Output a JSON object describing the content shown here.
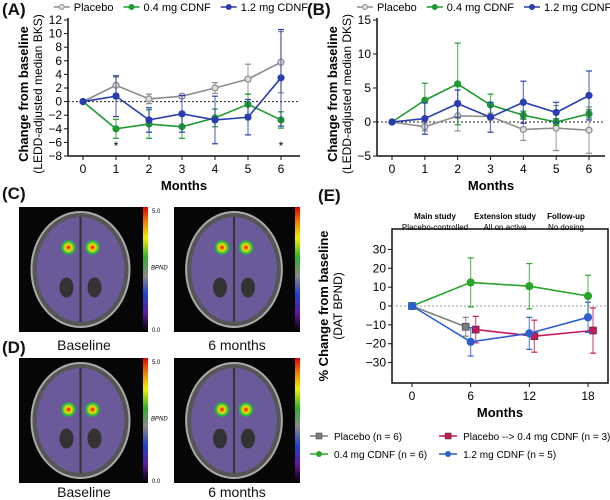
{
  "panels": {
    "a": "(A)",
    "b": "(B)",
    "c": "(C)",
    "d": "(D)",
    "e": "(E)"
  },
  "colors": {
    "placebo": "#8c8c8c",
    "cdnf04": "#1e9a2e",
    "cdnf12": "#2a3db0",
    "e_placebo": "#7f7f7f",
    "e_switch": "#c8175c",
    "e_cdnf04": "#2aa52a",
    "e_cdnf12": "#2b5fd0"
  },
  "images": {
    "baseline_label": "Baseline",
    "six_months_label": "6 months",
    "colorbar_max": "5.0",
    "colorbar_min": "0.0",
    "colorbar_label_c": "BPND",
    "colorbar_label_d": "BPND"
  },
  "chart_data": [
    {
      "type": "line",
      "panel": "A",
      "ylabel": "Change from baseline",
      "ylabel2": "(LEDD-adjusted median BKS)",
      "xlabel": "Months",
      "x": [
        0,
        1,
        2,
        3,
        4,
        5,
        6
      ],
      "ylim": [
        -8,
        12
      ],
      "yticks": [
        -8,
        -6,
        -4,
        -2,
        0,
        2,
        4,
        6,
        8,
        10,
        12
      ],
      "reference_line": 0,
      "legend": "top",
      "annotations": [
        {
          "x": 1,
          "text": "*"
        },
        {
          "x": 6,
          "text": "*"
        }
      ],
      "series": [
        {
          "name": "Placebo",
          "color": "#8c8c8c",
          "values": [
            0,
            2.4,
            0.4,
            0.8,
            2.0,
            3.3,
            5.8
          ],
          "error": [
            0,
            1.2,
            0.7,
            0.3,
            0.8,
            2.2,
            4.5
          ]
        },
        {
          "name": "0.4 mg CDNF",
          "color": "#1e9a2e",
          "values": [
            0,
            -4.0,
            -3.3,
            -3.7,
            -2.4,
            -0.4,
            -2.7
          ],
          "error": [
            0,
            1.4,
            2.1,
            1.7,
            1.3,
            1.5,
            1.2
          ]
        },
        {
          "name": "1.2 mg CDNF",
          "color": "#2a3db0",
          "values": [
            0,
            0.8,
            -2.7,
            -1.8,
            -2.7,
            -2.3,
            3.5
          ],
          "error": [
            0,
            3.0,
            1.8,
            2.7,
            3.5,
            2.6,
            7.1
          ]
        }
      ]
    },
    {
      "type": "line",
      "panel": "B",
      "ylabel": "Change from baseline",
      "ylabel2": "(LEDD-adjusted median DKS)",
      "xlabel": "Months",
      "x": [
        0,
        1,
        2,
        3,
        4,
        5,
        6
      ],
      "ylim": [
        -5,
        15
      ],
      "yticks": [
        -5,
        0,
        5,
        10,
        15
      ],
      "reference_line": 0,
      "legend": "top",
      "series": [
        {
          "name": "Placebo",
          "color": "#8c8c8c",
          "values": [
            0,
            -0.7,
            0.9,
            0.8,
            -1.1,
            -0.9,
            -1.2
          ],
          "error": [
            0,
            0.6,
            2.2,
            0.5,
            1.6,
            3.3,
            3.4
          ]
        },
        {
          "name": "0.4 mg CDNF",
          "color": "#1e9a2e",
          "values": [
            0,
            3.2,
            5.6,
            2.5,
            1.0,
            0,
            1.2
          ],
          "error": [
            0,
            2.5,
            6.0,
            1.6,
            0.6,
            0.5,
            0.6
          ]
        },
        {
          "name": "1.2 mg CDNF",
          "color": "#2a3db0",
          "values": [
            0,
            0.5,
            2.7,
            0.7,
            2.9,
            1.4,
            3.9
          ],
          "error": [
            0,
            2.3,
            2.0,
            2.2,
            3.1,
            1.5,
            3.6
          ]
        }
      ]
    },
    {
      "type": "line",
      "panel": "E",
      "ylabel": "% Change from baseline",
      "ylabel2": "(DAT BPND)",
      "xlabel": "Months",
      "xlim": [
        0,
        18
      ],
      "xticks": [
        0,
        6,
        12,
        18
      ],
      "ylim": [
        -35,
        35
      ],
      "yticks": [
        -30,
        -20,
        -10,
        0,
        10,
        20,
        30
      ],
      "reference_line": 0,
      "legend": "bottom",
      "phases": [
        {
          "title": "Main study",
          "sub": "Placebo-controlled"
        },
        {
          "title": "Extension study",
          "sub": "All on active"
        },
        {
          "title": "Follow-up",
          "sub": "No dosing"
        }
      ],
      "series": [
        {
          "name": "Placebo (n = 6)",
          "marker": "square",
          "color": "#7f7f7f",
          "x": [
            0,
            6
          ],
          "values": [
            0,
            -11
          ],
          "error": [
            0,
            5
          ]
        },
        {
          "name": "Placebo --> 0.4 mg CDNF (n = 3)",
          "marker": "square",
          "color": "#c8175c",
          "x": [
            6,
            12,
            18
          ],
          "values": [
            -12.5,
            -16,
            -13
          ],
          "error": [
            7,
            8.5,
            12
          ]
        },
        {
          "name": "0.4 mg CDNF (n = 6)",
          "marker": "circle",
          "color": "#2aa52a",
          "x": [
            0,
            6,
            12,
            18
          ],
          "values": [
            0,
            12.5,
            10.5,
            5.3
          ],
          "error": [
            0,
            13,
            12,
            11
          ]
        },
        {
          "name": "1.2 mg CDNF (n = 5)",
          "marker": "circle",
          "color": "#2b5fd0",
          "x": [
            0,
            6,
            12,
            18
          ],
          "values": [
            0,
            -19,
            -14.5,
            -6
          ],
          "error": [
            0,
            7.5,
            8.5,
            8
          ]
        }
      ]
    }
  ]
}
